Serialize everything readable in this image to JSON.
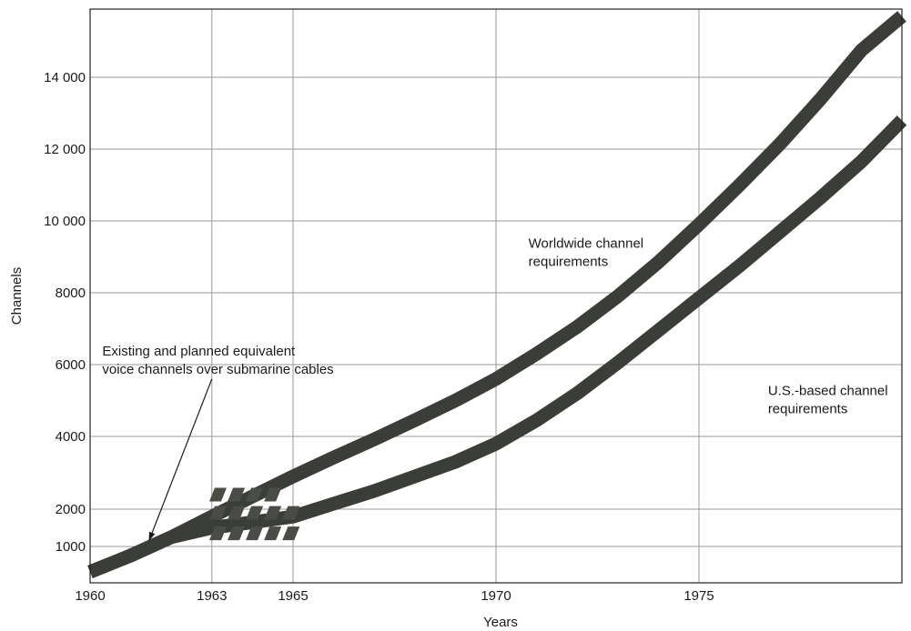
{
  "chart_data": {
    "type": "line",
    "title": "",
    "xlabel": "Years",
    "ylabel": "Channels",
    "xlim": [
      1960,
      1980
    ],
    "ylim": [
      0,
      16000
    ],
    "x_ticks": [
      1960,
      1963,
      1965,
      1970,
      1975
    ],
    "x_tick_labels": [
      "1960",
      "1963",
      "1965",
      "1970",
      "1975"
    ],
    "y_ticks": [
      1000,
      2000,
      4000,
      6000,
      8000,
      10000,
      12000,
      14000
    ],
    "y_tick_labels": [
      "1000",
      "2000",
      "4000",
      "6000",
      "8000",
      "10 000",
      "12 000",
      "14 000"
    ],
    "grid": true,
    "series": [
      {
        "name": "Worldwide channel requirements",
        "color": "#3a3d38",
        "x": [
          1960,
          1961,
          1962,
          1963,
          1964,
          1965,
          1966,
          1967,
          1968,
          1969,
          1970,
          1971,
          1972,
          1973,
          1974,
          1975,
          1976,
          1977,
          1978,
          1979,
          1980
        ],
        "y": [
          300,
          750,
          1250,
          1800,
          2350,
          2900,
          3420,
          3920,
          4450,
          5000,
          5600,
          6300,
          7050,
          7900,
          8850,
          9900,
          11000,
          12150,
          13400,
          14750,
          15700
        ]
      },
      {
        "name": "U.S.-based channel requirements",
        "color": "#3a3d38",
        "x": [
          1960,
          1961,
          1962,
          1963,
          1964,
          1965,
          1966,
          1967,
          1968,
          1969,
          1970,
          1971,
          1972,
          1973,
          1974,
          1975,
          1976,
          1977,
          1978,
          1979,
          1980
        ],
        "y": [
          300,
          750,
          1250,
          1500,
          1650,
          1800,
          2150,
          2500,
          2900,
          3300,
          3800,
          4450,
          5200,
          6050,
          6950,
          7850,
          8750,
          9700,
          10650,
          11650,
          12800
        ]
      }
    ],
    "cable_blocks": {
      "label": "Existing and planned equivalent voice channels over submarine cables",
      "color": "#4a4d46",
      "rows": [
        {
          "x": [
            1963.15,
            1963.6,
            1964.05,
            1964.5
          ],
          "y": 2400
        },
        {
          "x": [
            1963.15,
            1963.6,
            1964.05,
            1964.5,
            1964.95
          ],
          "y": 1900
        },
        {
          "x": [
            1963.15,
            1963.6,
            1964.05,
            1964.5,
            1964.95
          ],
          "y": 1350
        }
      ]
    },
    "annotations": [
      {
        "lines": [
          "Worldwide channel",
          "requirements"
        ],
        "anchor": [
          1970.8,
          9250
        ]
      },
      {
        "lines": [
          "U.S.-based channel",
          "requirements"
        ],
        "anchor": [
          1976.7,
          5150
        ]
      },
      {
        "lines": [
          "Existing and planned equivalent",
          "voice channels over submarine cables"
        ],
        "anchor": [
          1960.3,
          6250
        ]
      }
    ]
  }
}
